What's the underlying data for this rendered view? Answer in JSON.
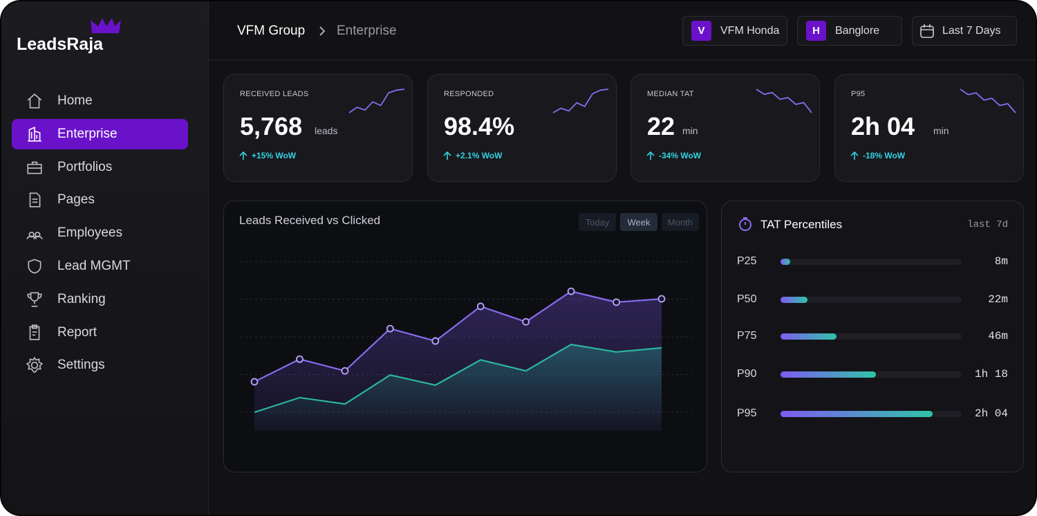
{
  "brand": "LeadsRaja",
  "nav": [
    "Home",
    "Enterprise",
    "Portfolios",
    "Pages",
    "Employees",
    "Lead MGMT",
    "Ranking",
    "Report",
    "Settings"
  ],
  "breadcrumb": [
    "VFM Group",
    "Enterprise"
  ],
  "filters": [
    {
      "badge": "V",
      "label": "VFM Honda"
    },
    {
      "badge": "H",
      "label": "Banglore"
    },
    {
      "label": "Last 7 Days"
    }
  ],
  "kpis": [
    {
      "label": "RECEIVED LEADS",
      "value": "5,768",
      "unit": "leads",
      "change": "+15% WoW",
      "spark": [
        0,
        6,
        3,
        12,
        8,
        22,
        25,
        26
      ]
    },
    {
      "label": "RESPONDED",
      "value": "98.4%",
      "change": "+2.1% WoW",
      "spark": [
        0,
        5,
        2,
        11,
        7,
        21,
        25,
        26
      ]
    },
    {
      "label": "MEDIAN TAT",
      "value": "22",
      "unit": "min",
      "change": "-34% WoW",
      "spark": [
        28,
        22,
        24,
        16,
        18,
        10,
        12,
        0
      ]
    },
    {
      "label": "P95",
      "value": "2h 04",
      "unit": "min",
      "change": "-18% WoW",
      "spark": [
        28,
        22,
        24,
        16,
        18,
        10,
        12,
        2
      ]
    }
  ],
  "chart_data": [
    {
      "type": "area",
      "title": "Leads Received vs Clicked",
      "tabs": [
        "Today",
        "Week",
        "Month"
      ],
      "categories": [
        null,
        null,
        null,
        null,
        null,
        null,
        null,
        null,
        null,
        null
      ],
      "ylim": [
        -0.31,
        4.46
      ],
      "yticks": [
        0,
        1,
        2,
        3,
        4
      ],
      "grid": true,
      "series": [
        {
          "color": "#8b6cf0",
          "values": [
            0.81,
            1.41,
            1.1,
            2.22,
            1.89,
            2.81,
            2.4,
            3.21,
            2.92,
            3.01
          ]
        },
        {
          "color": "#2bb5a0",
          "values": [
            0,
            0.39,
            0.22,
            0.99,
            0.72,
            1.39,
            1.1,
            1.8,
            1.6,
            1.71
          ]
        }
      ]
    },
    {
      "type": "bar",
      "title": "TAT Percentiles",
      "subtitle": "last 7d",
      "categories": [
        "P25",
        "P50",
        "P75",
        "P90",
        "P95"
      ],
      "values": [
        8,
        22,
        46,
        78,
        124
      ],
      "value_labels": [
        "8m",
        "22m",
        "46m",
        "1h 18",
        "2h 04"
      ],
      "xlim": [
        0,
        148
      ]
    }
  ]
}
